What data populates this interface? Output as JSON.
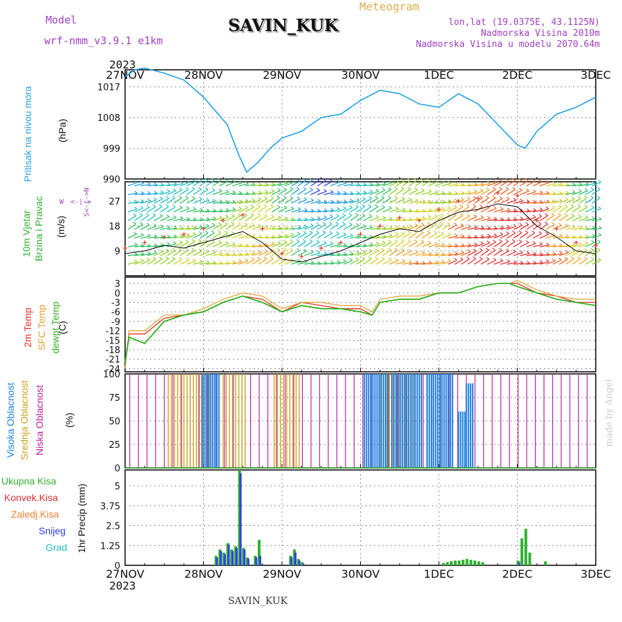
{
  "header": {
    "model_label": "Model",
    "model_name": "wrf-nmm_v3.9.1 e1km",
    "station": "SAVIN_KUK",
    "product": "Meteogram",
    "lonlat": "lon,lat (19.0375E, 43.1125N)",
    "elevation": "Nadmorska Visina 2010m",
    "model_elevation": "Nadmorska Visina u modelu 2070.64m",
    "credit": "made by Angel",
    "footer_station": "SAVIN_KUK",
    "year_top": "2023",
    "year_bottom": "2023"
  },
  "colors": {
    "pressure": "#1ea0e0",
    "wind_avg": "#000000",
    "gust": "#e03020",
    "t2m": "#e03020",
    "tsfc": "#e0a030",
    "dewpt": "#30b020",
    "cloud_high": "#2080e0",
    "cloud_mid": "#d0a020",
    "cloud_low": "#c020a0",
    "precip_total": "#30b030",
    "precip_conv": "#e03030",
    "precip_frz": "#f08030",
    "precip_snow": "#3040e0",
    "precip_hail": "#20c0c0",
    "model_text": "#a040c0",
    "product_text": "#e0b050"
  },
  "chart_data": [
    {
      "type": "line",
      "panel": "pressure",
      "ylabel_title": "Pritisak na nivou mora",
      "ylabel_unit": "(hPa)",
      "x_days": [
        "27NOV",
        "28NOV",
        "29NOV",
        "30NOV",
        "1DEC",
        "2DEC",
        "3DEC"
      ],
      "yticks": [
        990,
        999,
        1008,
        1017
      ],
      "ylim": [
        990,
        1022
      ],
      "x": [
        0,
        0.125,
        0.25,
        0.5,
        0.75,
        1.0,
        1.15,
        1.3,
        1.45,
        1.55,
        1.7,
        1.85,
        2.0,
        2.25,
        2.5,
        2.75,
        3.0,
        3.25,
        3.5,
        3.75,
        4.0,
        4.25,
        4.5,
        4.75,
        5.0,
        5.1,
        5.25,
        5.5,
        5.75,
        6.0
      ],
      "series": [
        {
          "values": [
            1020,
            1022,
            1022.5,
            1021,
            1019,
            1014,
            1010,
            1006,
            997,
            992,
            995,
            999,
            1002,
            1004,
            1008,
            1009,
            1013,
            1016,
            1015,
            1012,
            1011,
            1015,
            1012,
            1006,
            1000,
            999,
            1004,
            1009,
            1011,
            1014
          ]
        }
      ]
    },
    {
      "type": "line",
      "panel": "wind",
      "ylabel_title": "10m Vjetar",
      "ylabel_title2": "Brzina i Pravac",
      "ylabel_unit": "(m/s)",
      "compass": {
        "w": "W",
        "e": "E",
        "n": "N",
        "s": "S"
      },
      "yticks": [
        9,
        18,
        27
      ],
      "ylim": [
        0,
        34
      ],
      "x": [
        0,
        0.25,
        0.5,
        0.75,
        1.0,
        1.25,
        1.5,
        1.75,
        2.0,
        2.25,
        2.5,
        2.75,
        3.0,
        3.25,
        3.5,
        3.75,
        4.0,
        4.25,
        4.5,
        4.75,
        5.0,
        5.25,
        5.5,
        5.75,
        6.0
      ],
      "series": [
        {
          "values": [
            8,
            9,
            11,
            10,
            12,
            14,
            16,
            12,
            6,
            5,
            7,
            9,
            12,
            15,
            17,
            16,
            20,
            23,
            24,
            26,
            25,
            18,
            14,
            9,
            8
          ]
        },
        {
          "values": [
            10,
            12,
            14,
            15,
            17,
            20,
            22,
            17,
            8,
            7,
            10,
            12,
            15,
            18,
            21,
            20,
            24,
            27,
            28,
            30,
            29,
            20,
            17,
            12,
            11
          ]
        }
      ]
    },
    {
      "type": "line",
      "panel": "temperature",
      "ylabel_titles": [
        "2m Temp",
        "SFC Temp",
        "dewpt Temp"
      ],
      "ylabel_unit": "(C)",
      "yticks": [
        3,
        0,
        -3,
        -6,
        -9,
        -12,
        -15,
        -18,
        -21,
        -24
      ],
      "ylim": [
        -25,
        5
      ],
      "x": [
        0,
        0.05,
        0.25,
        0.5,
        0.75,
        1.0,
        1.25,
        1.5,
        1.75,
        2.0,
        2.25,
        2.5,
        2.75,
        3.0,
        3.15,
        3.25,
        3.5,
        3.75,
        4.0,
        4.25,
        4.5,
        4.75,
        4.9,
        5.0,
        5.25,
        5.5,
        5.75,
        6.0
      ],
      "series": [
        {
          "values": [
            -22,
            -13,
            -13,
            -8,
            -7,
            -6,
            -3,
            -1,
            -2,
            -6,
            -3,
            -4,
            -5,
            -5,
            -7,
            -3,
            -2,
            -2,
            0,
            0,
            2,
            3,
            3,
            3,
            0,
            -1,
            -3,
            -3
          ]
        },
        {
          "values": [
            -24,
            -12,
            -12,
            -7,
            -7,
            -5,
            -2,
            0,
            -1,
            -5,
            -3,
            -3,
            -4,
            -4,
            -6,
            -2,
            -1,
            -1,
            0,
            0,
            2,
            3,
            3,
            4,
            1,
            -1,
            -2,
            -2
          ]
        },
        {
          "values": [
            -22,
            -14,
            -16,
            -9,
            -7,
            -6,
            -3,
            -1,
            -3,
            -6,
            -4,
            -5,
            -5,
            -6,
            -7,
            -3,
            -2,
            -2,
            0,
            0,
            2,
            3,
            3,
            2,
            0,
            -2,
            -3,
            -4
          ]
        }
      ]
    },
    {
      "type": "bar",
      "panel": "clouds",
      "ylabel_titles": [
        "Visoka Oblacnost",
        "Srednja Oblacnost",
        "Niska Oblacnost"
      ],
      "ylabel_unit": "(%)",
      "yticks": [
        0,
        25,
        50,
        75,
        100
      ],
      "ylim": [
        0,
        100
      ],
      "high_segments": [
        [
          0.98,
          1.2,
          100
        ],
        [
          3.05,
          3.35,
          100
        ],
        [
          3.4,
          3.8,
          100
        ],
        [
          3.85,
          4.2,
          100
        ],
        [
          4.25,
          4.35,
          60
        ],
        [
          4.35,
          4.45,
          90
        ]
      ],
      "mid_segments": [
        [
          0.55,
          1.15,
          100
        ],
        [
          1.25,
          1.55,
          100
        ],
        [
          1.9,
          2.25,
          100
        ],
        [
          3.25,
          3.7,
          100
        ]
      ],
      "low_period_days": 0.11,
      "low_start": 0.06,
      "low_value": 100
    },
    {
      "type": "bar",
      "panel": "precip",
      "ylabel_titles": [
        "Ukupna Kisa",
        "Konvek.Kisa",
        "Zaledj.Kisa",
        "Snijeg",
        "Grad"
      ],
      "ylabel_unit": "1hr Precip (mm)",
      "yticks": [
        0,
        1.25,
        2.5,
        3.75,
        5
      ],
      "ytick_labels": [
        "0",
        "1.25",
        "2.5",
        "3.75",
        "5"
      ],
      "ylim": [
        0,
        6
      ],
      "bars": [
        {
          "x": 1.15,
          "snow": 0.5,
          "total": 0.6
        },
        {
          "x": 1.2,
          "snow": 0.9,
          "total": 1.0
        },
        {
          "x": 1.25,
          "snow": 0.7,
          "total": 0.8
        },
        {
          "x": 1.3,
          "snow": 1.3,
          "total": 1.4
        },
        {
          "x": 1.35,
          "snow": 0.9,
          "total": 1.0
        },
        {
          "x": 1.4,
          "snow": 1.1,
          "total": 1.2
        },
        {
          "x": 1.45,
          "snow": 5.8,
          "total": 6.0
        },
        {
          "x": 1.5,
          "snow": 1.0,
          "total": 1.1
        },
        {
          "x": 1.55,
          "snow": 0.4,
          "total": 0.5
        },
        {
          "x": 1.65,
          "snow": 0.5,
          "total": 0.6
        },
        {
          "x": 1.7,
          "snow": 0.6,
          "total": 1.6
        },
        {
          "x": 2.1,
          "snow": 0.5,
          "total": 0.6
        },
        {
          "x": 2.15,
          "snow": 0.8,
          "total": 1.0
        },
        {
          "x": 2.2,
          "snow": 0.3,
          "total": 0.4
        },
        {
          "x": 2.25,
          "snow": 0.1,
          "total": 0.2
        },
        {
          "x": 4.05,
          "snow": 0.0,
          "total": 0.15
        },
        {
          "x": 4.1,
          "snow": 0.0,
          "total": 0.2
        },
        {
          "x": 4.15,
          "snow": 0.0,
          "total": 0.25
        },
        {
          "x": 4.2,
          "snow": 0.0,
          "total": 0.3
        },
        {
          "x": 4.25,
          "snow": 0.0,
          "total": 0.3
        },
        {
          "x": 4.3,
          "snow": 0.0,
          "total": 0.35
        },
        {
          "x": 4.35,
          "snow": 0.0,
          "total": 0.4
        },
        {
          "x": 4.4,
          "snow": 0.0,
          "total": 0.35
        },
        {
          "x": 4.45,
          "snow": 0.0,
          "total": 0.3
        },
        {
          "x": 4.5,
          "snow": 0.0,
          "total": 0.25
        },
        {
          "x": 4.55,
          "snow": 0.0,
          "total": 0.2
        },
        {
          "x": 5.0,
          "snow": 0.2,
          "total": 0.3
        },
        {
          "x": 5.05,
          "snow": 0.0,
          "total": 1.7
        },
        {
          "x": 5.1,
          "snow": 0.0,
          "total": 2.3
        },
        {
          "x": 5.15,
          "snow": 0.0,
          "total": 0.8
        },
        {
          "x": 5.35,
          "snow": 0.0,
          "total": 0.25
        }
      ]
    }
  ]
}
